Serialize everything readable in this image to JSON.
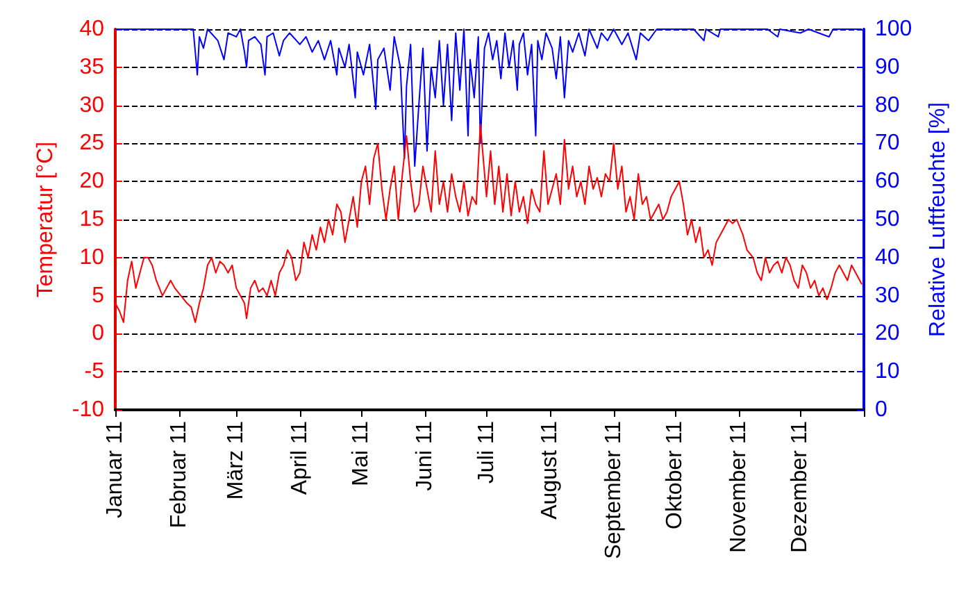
{
  "chart_data": {
    "type": "line",
    "ylabel": "Temperatur [°C]",
    "y2label": "Relative Luftfeuchte [%]",
    "xlim": [
      "2011-01-01",
      "2012-01-01"
    ],
    "xticks": [
      {
        "value": "2011-01-01",
        "label": "Januar 11"
      },
      {
        "value": "2011-02-01",
        "label": "Februar 11"
      },
      {
        "value": "2011-03-01",
        "label": "März 11"
      },
      {
        "value": "2011-04-01",
        "label": "April 11"
      },
      {
        "value": "2011-05-01",
        "label": "Mai 11"
      },
      {
        "value": "2011-06-01",
        "label": "Juni 11"
      },
      {
        "value": "2011-07-01",
        "label": "Juli 11"
      },
      {
        "value": "2011-08-01",
        "label": "August 11"
      },
      {
        "value": "2011-09-01",
        "label": "September 11"
      },
      {
        "value": "2011-10-01",
        "label": "Oktober 11"
      },
      {
        "value": "2011-11-01",
        "label": "November 11"
      },
      {
        "value": "2011-12-01",
        "label": "Dezember 11"
      },
      {
        "value": "2012-01-01",
        "label": null
      }
    ],
    "ylim": [
      -10,
      40
    ],
    "yticks": [
      -10,
      -5,
      0,
      5,
      10,
      15,
      20,
      25,
      30,
      35,
      40
    ],
    "y2lim": [
      0,
      100
    ],
    "y2ticks": [
      0,
      10,
      20,
      30,
      40,
      50,
      60,
      70,
      80,
      90,
      100
    ],
    "grid": "y",
    "series": [
      {
        "color": "#ff0000",
        "x": [
          "2011-01-01",
          "2011-01-03",
          "2011-01-05",
          "2011-01-07",
          "2011-01-09",
          "2011-01-11",
          "2011-01-13",
          "2011-01-15",
          "2011-01-17",
          "2011-01-19",
          "2011-01-21",
          "2011-01-24",
          "2011-01-26",
          "2011-01-28",
          "2011-01-30",
          "2011-02-02",
          "2011-02-05",
          "2011-02-07",
          "2011-02-09",
          "2011-02-11",
          "2011-02-13",
          "2011-02-15",
          "2011-02-17",
          "2011-02-19",
          "2011-02-21",
          "2011-02-23",
          "2011-02-25",
          "2011-02-27",
          "2011-03-01",
          "2011-03-03",
          "2011-03-05",
          "2011-03-06",
          "2011-03-08",
          "2011-03-10",
          "2011-03-12",
          "2011-03-14",
          "2011-03-16",
          "2011-03-18",
          "2011-03-20",
          "2011-03-22",
          "2011-03-24",
          "2011-03-26",
          "2011-03-28",
          "2011-03-30",
          "2011-04-01",
          "2011-04-03",
          "2011-04-05",
          "2011-04-07",
          "2011-04-09",
          "2011-04-11",
          "2011-04-13",
          "2011-04-15",
          "2011-04-17",
          "2011-04-19",
          "2011-04-21",
          "2011-04-23",
          "2011-04-25",
          "2011-04-27",
          "2011-04-29",
          "2011-05-01",
          "2011-05-03",
          "2011-05-05",
          "2011-05-07",
          "2011-05-09",
          "2011-05-11",
          "2011-05-13",
          "2011-05-15",
          "2011-05-17",
          "2011-05-19",
          "2011-05-21",
          "2011-05-23",
          "2011-05-25",
          "2011-05-27",
          "2011-05-29",
          "2011-05-31",
          "2011-06-02",
          "2011-06-04",
          "2011-06-06",
          "2011-06-08",
          "2011-06-10",
          "2011-06-12",
          "2011-06-14",
          "2011-06-16",
          "2011-06-18",
          "2011-06-20",
          "2011-06-22",
          "2011-06-24",
          "2011-06-26",
          "2011-06-28",
          "2011-07-01",
          "2011-07-03",
          "2011-07-05",
          "2011-07-07",
          "2011-07-09",
          "2011-07-11",
          "2011-07-13",
          "2011-07-15",
          "2011-07-17",
          "2011-07-19",
          "2011-07-21",
          "2011-07-23",
          "2011-07-25",
          "2011-07-27",
          "2011-07-29",
          "2011-07-31",
          "2011-08-02",
          "2011-08-04",
          "2011-08-06",
          "2011-08-08",
          "2011-08-10",
          "2011-08-12",
          "2011-08-14",
          "2011-08-16",
          "2011-08-18",
          "2011-08-20",
          "2011-08-22",
          "2011-08-24",
          "2011-08-26",
          "2011-08-28",
          "2011-08-30",
          "2011-09-01",
          "2011-09-03",
          "2011-09-05",
          "2011-09-07",
          "2011-09-09",
          "2011-09-11",
          "2011-09-13",
          "2011-09-15",
          "2011-09-17",
          "2011-09-19",
          "2011-09-21",
          "2011-09-23",
          "2011-09-25",
          "2011-09-27",
          "2011-09-29",
          "2011-10-01",
          "2011-10-03",
          "2011-10-05",
          "2011-10-07",
          "2011-10-09",
          "2011-10-11",
          "2011-10-13",
          "2011-10-15",
          "2011-10-17",
          "2011-10-19",
          "2011-10-21",
          "2011-10-23",
          "2011-10-25",
          "2011-10-27",
          "2011-10-29",
          "2011-10-31",
          "2011-11-03",
          "2011-11-05",
          "2011-11-08",
          "2011-11-10",
          "2011-11-12",
          "2011-11-14",
          "2011-11-16",
          "2011-11-18",
          "2011-11-20",
          "2011-11-22",
          "2011-11-24",
          "2011-11-26",
          "2011-11-28",
          "2011-11-30",
          "2011-12-02",
          "2011-12-04",
          "2011-12-06",
          "2011-12-08",
          "2011-12-10",
          "2011-12-12",
          "2011-12-14",
          "2011-12-16",
          "2011-12-18",
          "2011-12-20",
          "2011-12-22",
          "2011-12-24",
          "2011-12-26",
          "2011-12-28",
          "2011-12-31"
        ],
        "values": [
          4,
          3,
          1.5,
          7,
          9.5,
          6,
          8,
          10,
          10,
          9,
          7,
          5,
          6,
          7,
          6,
          5,
          4,
          3.5,
          1.5,
          4,
          6,
          9,
          10,
          8,
          9.5,
          9,
          8,
          9,
          6,
          5,
          4,
          2,
          6,
          7,
          5.5,
          6,
          5,
          7,
          5,
          8,
          9,
          11,
          10,
          7,
          8,
          12,
          10,
          13,
          11,
          14,
          12,
          15,
          13,
          17,
          16,
          12,
          15,
          18,
          14,
          20,
          22,
          17,
          23,
          25,
          19,
          15,
          19,
          22,
          15,
          21,
          26,
          20,
          16,
          17,
          22,
          19,
          16,
          24,
          17,
          20,
          16,
          21,
          18,
          16,
          20,
          15.5,
          18,
          17,
          27.5,
          18,
          24,
          17,
          22,
          16,
          21,
          15.5,
          20,
          16,
          18,
          14.5,
          19,
          17,
          16,
          24,
          17,
          19,
          21,
          17,
          25.5,
          19,
          22,
          18,
          20,
          17,
          22,
          19,
          20.5,
          18,
          21,
          20,
          25,
          19,
          22,
          16,
          18,
          15,
          21,
          17,
          18,
          15,
          16,
          17,
          15,
          16,
          18,
          19,
          20,
          17,
          13,
          15,
          12,
          14,
          10,
          11,
          9,
          12,
          13,
          14,
          15,
          14.5,
          15,
          13,
          11,
          10,
          8,
          7,
          10,
          8,
          9,
          9.5,
          8,
          10,
          9,
          7,
          6,
          9,
          8,
          6,
          7,
          5,
          6,
          4.5,
          6,
          8,
          9,
          8,
          7,
          9,
          8,
          6.5
        ]
      },
      {
        "color": "#0000ff",
        "axis": "y2",
        "x": [
          "2011-01-01",
          "2011-01-20",
          "2011-02-08",
          "2011-02-09",
          "2011-02-10",
          "2011-02-11",
          "2011-02-13",
          "2011-02-15",
          "2011-02-20",
          "2011-02-23",
          "2011-02-25",
          "2011-03-01",
          "2011-03-03",
          "2011-03-05",
          "2011-03-06",
          "2011-03-07",
          "2011-03-10",
          "2011-03-13",
          "2011-03-15",
          "2011-03-16",
          "2011-03-19",
          "2011-03-22",
          "2011-03-24",
          "2011-03-27",
          "2011-04-01",
          "2011-04-04",
          "2011-04-07",
          "2011-04-10",
          "2011-04-13",
          "2011-04-16",
          "2011-04-19",
          "2011-04-20",
          "2011-04-23",
          "2011-04-25",
          "2011-04-28",
          "2011-04-29",
          "2011-05-02",
          "2011-05-05",
          "2011-05-08",
          "2011-05-09",
          "2011-05-12",
          "2011-05-15",
          "2011-05-17",
          "2011-05-20",
          "2011-05-22",
          "2011-05-23",
          "2011-05-25",
          "2011-05-27",
          "2011-05-29",
          "2011-05-31",
          "2011-06-02",
          "2011-06-04",
          "2011-06-06",
          "2011-06-08",
          "2011-06-10",
          "2011-06-12",
          "2011-06-14",
          "2011-06-16",
          "2011-06-18",
          "2011-06-20",
          "2011-06-22",
          "2011-06-23",
          "2011-06-25",
          "2011-06-27",
          "2011-06-28",
          "2011-06-30",
          "2011-07-02",
          "2011-07-04",
          "2011-07-06",
          "2011-07-08",
          "2011-07-10",
          "2011-07-12",
          "2011-07-14",
          "2011-07-16",
          "2011-07-17",
          "2011-07-19",
          "2011-07-21",
          "2011-07-23",
          "2011-07-25",
          "2011-07-26",
          "2011-07-28",
          "2011-07-30",
          "2011-08-02",
          "2011-08-04",
          "2011-08-06",
          "2011-08-08",
          "2011-08-10",
          "2011-08-12",
          "2011-08-15",
          "2011-08-18",
          "2011-08-20",
          "2011-08-24",
          "2011-08-26",
          "2011-08-29",
          "2011-09-01",
          "2011-09-05",
          "2011-09-08",
          "2011-09-12",
          "2011-09-14",
          "2011-09-18",
          "2011-09-22",
          "2011-10-10",
          "2011-10-15",
          "2011-10-16",
          "2011-10-22",
          "2011-10-23",
          "2011-11-15",
          "2011-11-20",
          "2011-11-21",
          "2011-12-01",
          "2011-12-05",
          "2011-12-15",
          "2011-12-17",
          "2011-12-31"
        ],
        "values": [
          100,
          100,
          100,
          94,
          88,
          98,
          95,
          100,
          97,
          92,
          99,
          98,
          100,
          94,
          90,
          97,
          98,
          96,
          88,
          98,
          99,
          93,
          97,
          99,
          96,
          98,
          94,
          97,
          92,
          97,
          88,
          95,
          90,
          96,
          82,
          94,
          88,
          96,
          79,
          92,
          95,
          84,
          98,
          90,
          66,
          85,
          96,
          64,
          80,
          95,
          68,
          90,
          82,
          97,
          80,
          96,
          76,
          99,
          84,
          100,
          72,
          92,
          82,
          98,
          70,
          95,
          99,
          92,
          97,
          87,
          99,
          90,
          97,
          84,
          96,
          99,
          88,
          96,
          72,
          97,
          92,
          99,
          95,
          87,
          98,
          82,
          97,
          94,
          99,
          93,
          100,
          95,
          99,
          97,
          100,
          96,
          99,
          92,
          99,
          97,
          100,
          100,
          97,
          100,
          98,
          100,
          100,
          98,
          100,
          99,
          100,
          98,
          100,
          100
        ]
      }
    ]
  }
}
